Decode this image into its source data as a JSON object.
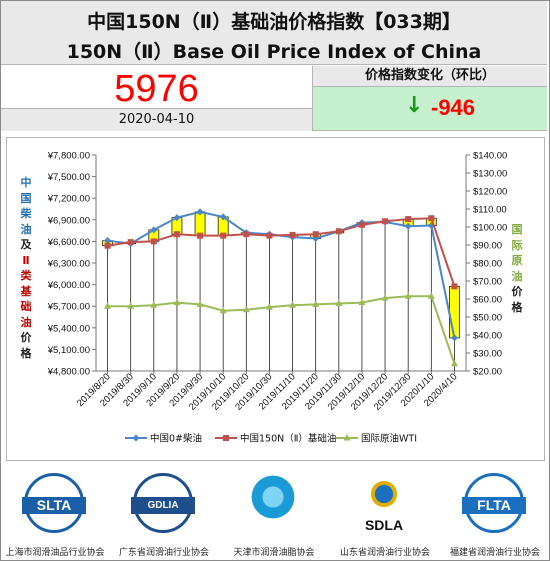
{
  "header": {
    "title_cn": "中国150N（Ⅱ）基础油价格指数【033期】",
    "title_en": "150N（Ⅱ）Base Oil Price Index of China"
  },
  "index": {
    "value": "5976",
    "date": "2020-04-10",
    "change_label": "价格指数变化（环比）",
    "change_arrow": "↓",
    "change_value": "-946"
  },
  "axis_titles": {
    "left": [
      {
        "ch": "中",
        "color": "#1f6fb5"
      },
      {
        "ch": "国",
        "color": "#1f6fb5"
      },
      {
        "ch": "柴",
        "color": "#1f6fb5"
      },
      {
        "ch": "油",
        "color": "#1f6fb5"
      },
      {
        "ch": "及",
        "color": "#222222"
      },
      {
        "ch": "Ⅱ",
        "color": "#c00000"
      },
      {
        "ch": "类",
        "color": "#c00000"
      },
      {
        "ch": "基",
        "color": "#c00000"
      },
      {
        "ch": "础",
        "color": "#c00000"
      },
      {
        "ch": "油",
        "color": "#c00000"
      },
      {
        "ch": "价",
        "color": "#222222"
      },
      {
        "ch": "格",
        "color": "#222222"
      }
    ],
    "right": [
      {
        "ch": "国",
        "color": "#7faa3a"
      },
      {
        "ch": "际",
        "color": "#7faa3a"
      },
      {
        "ch": "原",
        "color": "#7faa3a"
      },
      {
        "ch": "油",
        "color": "#7faa3a"
      },
      {
        "ch": "价",
        "color": "#222222"
      },
      {
        "ch": "格",
        "color": "#222222"
      }
    ]
  },
  "chart_data": {
    "type": "line",
    "categories": [
      "2019/8/20",
      "2019/8/30",
      "2019/9/10",
      "2019/9/20",
      "2019/9/30",
      "2019/10/10",
      "2019/10/20",
      "2019/10/30",
      "2019/11/10",
      "2019/11/20",
      "2019/11/30",
      "2019/12/10",
      "2019/12/20",
      "2019/12/30",
      "2020/1/10",
      "2020/4/10"
    ],
    "y_left": {
      "min": 4800,
      "max": 7800,
      "step": 300,
      "tick_format": "¥{v}.00"
    },
    "y_right": {
      "min": 20,
      "max": 140,
      "step": 10,
      "tick_format": "${v}.00"
    },
    "series": [
      {
        "name": "中国0#柴油",
        "color": "#4a86c8",
        "marker": "diamond",
        "axis": "left",
        "values": [
          6610,
          6570,
          6760,
          6930,
          7010,
          6940,
          6720,
          6700,
          6660,
          6640,
          6740,
          6860,
          6870,
          6810,
          6820,
          5260
        ]
      },
      {
        "name": "中国150N（Ⅱ）基础油",
        "color": "#c0504d",
        "marker": "square",
        "axis": "left",
        "values": [
          6540,
          6590,
          6600,
          6700,
          6680,
          6680,
          6700,
          6680,
          6690,
          6700,
          6740,
          6830,
          6880,
          6910,
          6922,
          5976
        ]
      },
      {
        "name": "国际原油WTI",
        "color": "#9bbb59",
        "marker": "triangle",
        "axis": "right",
        "values": [
          56,
          56,
          56.5,
          58,
          57,
          53.5,
          54,
          55.5,
          56.5,
          57,
          57.5,
          58,
          60.5,
          61.5,
          61.5,
          24
        ]
      }
    ],
    "candle_color": "#ffff00",
    "legend_position": "bottom",
    "grid": false
  },
  "associations": [
    {
      "abbr": "SLTA",
      "name": "上海市润滑油品行业协会",
      "color": "#1b5fa8"
    },
    {
      "abbr": "GDLIA",
      "name": "广东省润滑油行业协会",
      "color": "#1f4e8c"
    },
    {
      "abbr": "",
      "name": "天津市润滑油脂协会",
      "color": "#1a9ad6"
    },
    {
      "abbr": "SDLA",
      "name": "山东省润滑油行业协会",
      "color": "#222222"
    },
    {
      "abbr": "FLTA",
      "name": "福建省润滑油行业协会",
      "color": "#1a6fc0"
    }
  ]
}
